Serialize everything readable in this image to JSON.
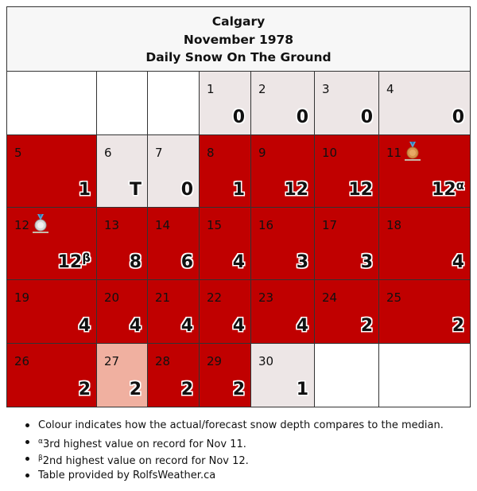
{
  "header": {
    "city": "Calgary",
    "month": "November 1978",
    "subtitle": "Daily Snow On The Ground"
  },
  "colors": {
    "above_median": "#c00000",
    "median": "#ede6e6",
    "slightly_above": "#f0b0a0",
    "empty": "#ffffff"
  },
  "weeks": [
    [
      {
        "day": "",
        "value": "",
        "cls": "white"
      },
      {
        "day": "",
        "value": "",
        "cls": "white"
      },
      {
        "day": "",
        "value": "",
        "cls": "white"
      },
      {
        "day": "1",
        "value": "0",
        "cls": "grey"
      },
      {
        "day": "2",
        "value": "0",
        "cls": "grey"
      },
      {
        "day": "3",
        "value": "0",
        "cls": "grey"
      },
      {
        "day": "4",
        "value": "0",
        "cls": "grey"
      }
    ],
    [
      {
        "day": "5",
        "value": "1",
        "cls": "red"
      },
      {
        "day": "6",
        "value": "T",
        "cls": "grey"
      },
      {
        "day": "7",
        "value": "0",
        "cls": "grey"
      },
      {
        "day": "8",
        "value": "1",
        "cls": "red"
      },
      {
        "day": "9",
        "value": "12",
        "cls": "red"
      },
      {
        "day": "10",
        "value": "12",
        "cls": "red"
      },
      {
        "day": "11",
        "value": "12",
        "sup": "α",
        "cls": "red",
        "medal": "bronze-medal-icon"
      }
    ],
    [
      {
        "day": "12",
        "value": "12",
        "sup": "β",
        "cls": "red",
        "medal": "silver-medal-icon"
      },
      {
        "day": "13",
        "value": "8",
        "cls": "red"
      },
      {
        "day": "14",
        "value": "6",
        "cls": "red"
      },
      {
        "day": "15",
        "value": "4",
        "cls": "red"
      },
      {
        "day": "16",
        "value": "3",
        "cls": "red"
      },
      {
        "day": "17",
        "value": "3",
        "cls": "red"
      },
      {
        "day": "18",
        "value": "4",
        "cls": "red"
      }
    ],
    [
      {
        "day": "19",
        "value": "4",
        "cls": "red"
      },
      {
        "day": "20",
        "value": "4",
        "cls": "red"
      },
      {
        "day": "21",
        "value": "4",
        "cls": "red"
      },
      {
        "day": "22",
        "value": "4",
        "cls": "red"
      },
      {
        "day": "23",
        "value": "4",
        "cls": "red"
      },
      {
        "day": "24",
        "value": "2",
        "cls": "red"
      },
      {
        "day": "25",
        "value": "2",
        "cls": "red"
      }
    ],
    [
      {
        "day": "26",
        "value": "2",
        "cls": "red"
      },
      {
        "day": "27",
        "value": "2",
        "cls": "pink"
      },
      {
        "day": "28",
        "value": "2",
        "cls": "red"
      },
      {
        "day": "29",
        "value": "2",
        "cls": "red"
      },
      {
        "day": "30",
        "value": "1",
        "cls": "grey"
      },
      {
        "day": "",
        "value": "",
        "cls": "white"
      },
      {
        "day": "",
        "value": "",
        "cls": "white"
      }
    ]
  ],
  "notes": {
    "colour": "Colour indicates how the actual/forecast snow depth compares to the median.",
    "alpha_mark": "α",
    "alpha_text": "3rd highest value on record for Nov 11.",
    "beta_mark": "β",
    "beta_text": "2nd highest value on record for Nov 12.",
    "provider": "Table provided by RolfsWeather.ca"
  }
}
